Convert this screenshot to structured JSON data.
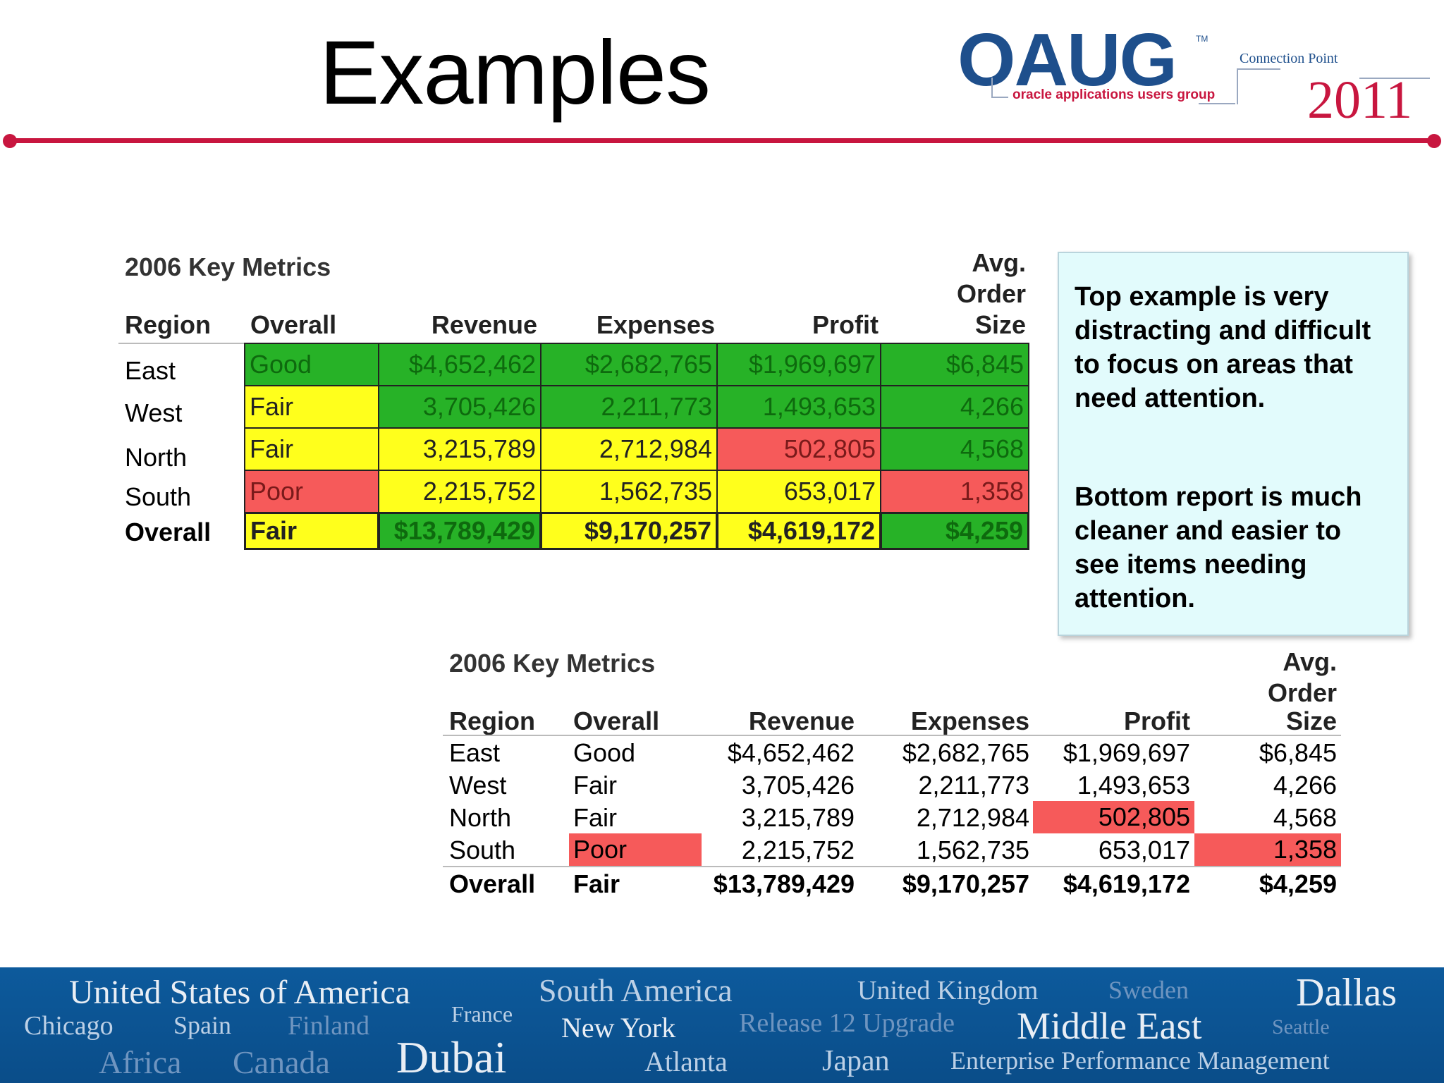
{
  "title": "Examples",
  "logo": {
    "name": "OAUG",
    "subtitle": "oracle applications users group",
    "tm": "TM",
    "event": "Connection Point",
    "year": "2011"
  },
  "top_table": {
    "title": "2006 Key Metrics",
    "headers": {
      "region": "Region",
      "overall": "Overall",
      "revenue": "Revenue",
      "expenses": "Expenses",
      "profit": "Profit",
      "aos1": "Avg.",
      "aos2": "Order",
      "aos3": "Size"
    },
    "rows": [
      {
        "region": "East",
        "overall": "Good",
        "revenue": "$4,652,462",
        "expenses": "$2,682,765",
        "profit": "$1,969,697",
        "aos": "$6,845",
        "colors": [
          "g",
          "g",
          "g",
          "g",
          "g"
        ]
      },
      {
        "region": "West",
        "overall": "Fair",
        "revenue": "3,705,426",
        "expenses": "2,211,773",
        "profit": "1,493,653",
        "aos": "4,266",
        "colors": [
          "y",
          "g",
          "g",
          "g",
          "g"
        ]
      },
      {
        "region": "North",
        "overall": "Fair",
        "revenue": "3,215,789",
        "expenses": "2,712,984",
        "profit": "502,805",
        "aos": "4,568",
        "colors": [
          "y",
          "y",
          "y",
          "r",
          "g"
        ]
      },
      {
        "region": "South",
        "overall": "Poor",
        "revenue": "2,215,752",
        "expenses": "1,562,735",
        "profit": "653,017",
        "aos": "1,358",
        "colors": [
          "r",
          "y",
          "y",
          "y",
          "r"
        ]
      }
    ],
    "overall_row": {
      "region": "Overall",
      "overall": "Fair",
      "revenue": "$13,789,429",
      "expenses": "$9,170,257",
      "profit": "$4,619,172",
      "aos": "$4,259",
      "colors": [
        "y",
        "g",
        "y",
        "y",
        "g"
      ]
    }
  },
  "bottom_table": {
    "title": "2006 Key Metrics",
    "headers": {
      "region": "Region",
      "overall": "Overall",
      "revenue": "Revenue",
      "expenses": "Expenses",
      "profit": "Profit",
      "aos1": "Avg.",
      "aos2": "Order",
      "aos3": "Size"
    },
    "rows": [
      {
        "region": "East",
        "overall": "Good",
        "revenue": "$4,652,462",
        "expenses": "$2,682,765",
        "profit": "$1,969,697",
        "aos": "$6,845"
      },
      {
        "region": "West",
        "overall": "Fair",
        "revenue": "3,705,426",
        "expenses": "2,211,773",
        "profit": "1,493,653",
        "aos": "4,266"
      },
      {
        "region": "North",
        "overall": "Fair",
        "revenue": "3,215,789",
        "expenses": "2,712,984",
        "profit": "502,805",
        "aos": "4,568"
      },
      {
        "region": "South",
        "overall": "Poor",
        "revenue": "2,215,752",
        "expenses": "1,562,735",
        "profit": "653,017",
        "aos": "1,358"
      }
    ],
    "overall_row": {
      "region": "Overall",
      "overall": "Fair",
      "revenue": "$13,789,429",
      "expenses": "$9,170,257",
      "profit": "$4,619,172",
      "aos": "$4,259"
    }
  },
  "note": {
    "p1": "Top example is very distracting and difficult to focus on areas that need attention.",
    "p2": "Bottom report is much cleaner and easier to see items needing attention."
  },
  "footer": {
    "usa": "United States of America",
    "chicago": "Chicago",
    "spain": "Spain",
    "finland": "Finland",
    "africa": "Africa",
    "canada": "Canada",
    "france": "France",
    "dubai": "Dubai",
    "south_america": "South America",
    "new_york": "New York",
    "atlanta": "Atlanta",
    "release12": "Release 12 Upgrade",
    "japan": "Japan",
    "uk": "United Kingdom",
    "sweden": "Sweden",
    "middle_east": "Middle East",
    "epm": "Enterprise Performance Management",
    "dallas": "Dallas",
    "seattle": "Seattle"
  },
  "colors": {
    "accent": "#c8163f",
    "brand_blue": "#1e4f8c",
    "good": "#27b227",
    "fair": "#ffff1c",
    "poor": "#f65a5a",
    "note_bg": "#e2fbfc",
    "footer_bg": "#0a4d89"
  }
}
